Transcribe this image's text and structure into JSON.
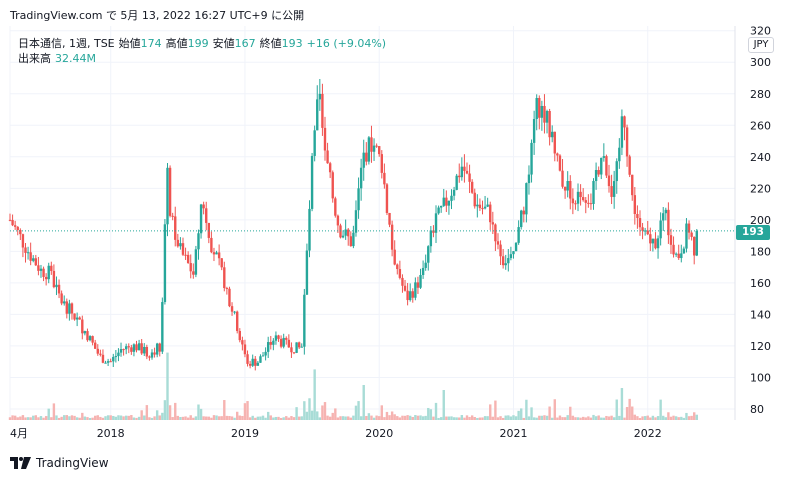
{
  "header": {
    "caption": "TradingView.com で 5月 13, 2022 16:27 UTC+9 に公開"
  },
  "legend": {
    "symbol": "日本通信, 1週, TSE",
    "open_label": "始値",
    "open_value": "174",
    "high_label": "高値",
    "high_value": "199",
    "low_label": "安値",
    "low_value": "167",
    "close_label": "終値",
    "close_value": "193",
    "change": "+16 (+9.04%)",
    "volume_label": "出来高",
    "volume_value": "32.44M"
  },
  "currency": "JPY",
  "last_price_tag": "193",
  "footer": {
    "brand": "TradingView"
  },
  "colors": {
    "up": "#26a69a",
    "down": "#ef5350",
    "up_volume": "#a8dcd6",
    "down_volume": "#f6b3b1",
    "grid": "#f0f3fa"
  },
  "chart_data": {
    "type": "candlestick",
    "y_axis": {
      "ticks": [
        "80",
        "100",
        "120",
        "140",
        "160",
        "180",
        "200",
        "220",
        "240",
        "260",
        "280",
        "300",
        "320"
      ],
      "range": [
        73,
        323
      ]
    },
    "x_axis": {
      "ticks": [
        "4月",
        "2018",
        "2019",
        "2020",
        "2021",
        "2022"
      ],
      "tick_dates": [
        2017.25,
        2018.0,
        2019.0,
        2020.0,
        2021.0,
        2022.0
      ],
      "range": [
        2017.25,
        2022.65
      ]
    },
    "last_price": 193,
    "price_path": [
      [
        2017.25,
        200
      ],
      [
        2017.32,
        190
      ],
      [
        2017.4,
        178
      ],
      [
        2017.48,
        168
      ],
      [
        2017.55,
        166
      ],
      [
        2017.62,
        150
      ],
      [
        2017.72,
        140
      ],
      [
        2017.82,
        128
      ],
      [
        2017.92,
        113
      ],
      [
        2018.0,
        110
      ],
      [
        2018.08,
        118
      ],
      [
        2018.18,
        120
      ],
      [
        2018.28,
        115
      ],
      [
        2018.37,
        120
      ],
      [
        2018.42,
        230
      ],
      [
        2018.45,
        200
      ],
      [
        2018.52,
        180
      ],
      [
        2018.62,
        165
      ],
      [
        2018.68,
        215
      ],
      [
        2018.75,
        185
      ],
      [
        2018.85,
        160
      ],
      [
        2018.95,
        130
      ],
      [
        2019.02,
        110
      ],
      [
        2019.1,
        110
      ],
      [
        2019.22,
        125
      ],
      [
        2019.32,
        120
      ],
      [
        2019.42,
        118
      ],
      [
        2019.5,
        235
      ],
      [
        2019.55,
        280
      ],
      [
        2019.62,
        230
      ],
      [
        2019.7,
        195
      ],
      [
        2019.8,
        185
      ],
      [
        2019.88,
        240
      ],
      [
        2019.95,
        250
      ],
      [
        2020.02,
        235
      ],
      [
        2020.1,
        180
      ],
      [
        2020.2,
        150
      ],
      [
        2020.3,
        160
      ],
      [
        2020.4,
        195
      ],
      [
        2020.52,
        215
      ],
      [
        2020.62,
        235
      ],
      [
        2020.72,
        210
      ],
      [
        2020.82,
        205
      ],
      [
        2020.92,
        175
      ],
      [
        2021.0,
        175
      ],
      [
        2021.1,
        220
      ],
      [
        2021.18,
        275
      ],
      [
        2021.26,
        260
      ],
      [
        2021.36,
        225
      ],
      [
        2021.46,
        215
      ],
      [
        2021.56,
        205
      ],
      [
        2021.66,
        245
      ],
      [
        2021.74,
        215
      ],
      [
        2021.82,
        270
      ],
      [
        2021.88,
        215
      ],
      [
        2021.96,
        190
      ],
      [
        2022.05,
        185
      ],
      [
        2022.12,
        205
      ],
      [
        2022.22,
        175
      ],
      [
        2022.3,
        195
      ],
      [
        2022.36,
        178
      ],
      [
        2022.38,
        193
      ]
    ],
    "volume_spikes": [
      {
        "x": 2018.42,
        "value": 60
      },
      {
        "x": 2019.52,
        "value": 45
      },
      {
        "x": 2019.88,
        "value": 35
      },
      {
        "x": 2020.48,
        "value": 30
      },
      {
        "x": 2021.8,
        "value": 30
      }
    ]
  }
}
